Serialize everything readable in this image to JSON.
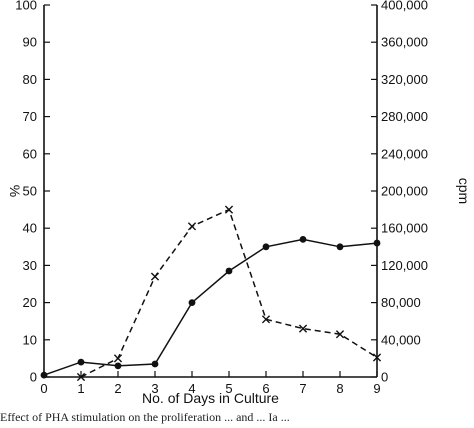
{
  "chart_data": {
    "type": "line",
    "title": "",
    "xlabel": "No. of Days in Culture",
    "ylabel_left": "%",
    "ylabel_right": "cpm",
    "x": [
      0,
      1,
      2,
      3,
      4,
      5,
      6,
      7,
      8,
      9
    ],
    "xlim": [
      0,
      9
    ],
    "ylim_left": [
      0,
      100
    ],
    "ylim_right": [
      0,
      400000
    ],
    "left_ticks": [
      "0",
      "10",
      "20",
      "30",
      "40",
      "50",
      "60",
      "70",
      "80",
      "90",
      "100"
    ],
    "right_ticks": [
      "0",
      "40,000",
      "80,000",
      "120,000",
      "160,000",
      "200,000",
      "240,000",
      "280,000",
      "320,000",
      "360,000",
      "400,000"
    ],
    "x_ticks": [
      "0",
      "1",
      "2",
      "3",
      "4",
      "5",
      "6",
      "7",
      "8",
      "9"
    ],
    "series": [
      {
        "marker": "filled-circle",
        "style": "solid",
        "axis": "left",
        "x": [
          0,
          1,
          2,
          3,
          4,
          5,
          6,
          7,
          8,
          9
        ],
        "values": [
          0.5,
          4,
          3,
          3.5,
          20,
          28.5,
          35,
          37,
          35,
          36
        ]
      },
      {
        "marker": "x",
        "style": "dashed",
        "axis": "right",
        "x": [
          1,
          2,
          3,
          4,
          5,
          6,
          7,
          8,
          9
        ],
        "values": [
          0,
          20000,
          108000,
          162000,
          180000,
          62000,
          52000,
          46000,
          21000
        ]
      }
    ],
    "grid": false
  },
  "caption": {
    "text": "Effect of PHA stimulation on the proliferation ... and ... Ia ..."
  }
}
